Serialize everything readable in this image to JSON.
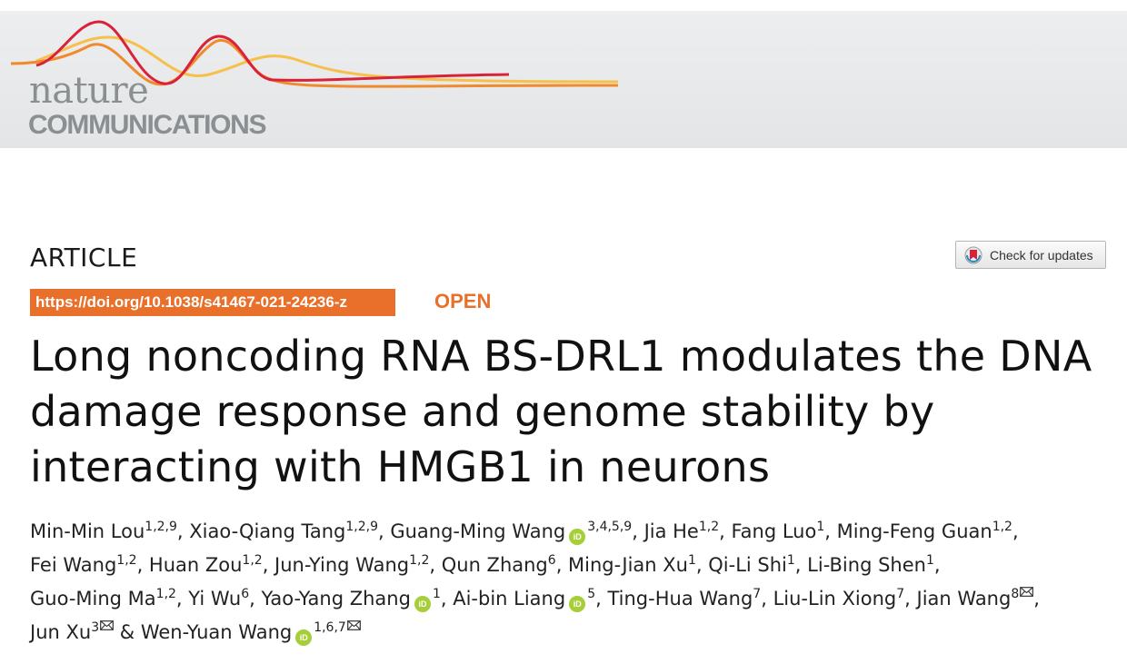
{
  "journal": {
    "logo_top": "nature",
    "logo_bottom": "COMMUNICATIONS",
    "colors": {
      "logo_gray": "#8a9092",
      "wave_red": "#d9223a",
      "wave_orange": "#f08a2c",
      "wave_yellow": "#f6c04a"
    }
  },
  "article": {
    "type_label": "ARTICLE",
    "check_updates_label": "Check for updates",
    "doi": "https://doi.org/10.1038/s41467-021-24236-z",
    "open_label": "OPEN",
    "accent_color": "#e8702a",
    "title_lines": [
      "Long noncoding RNA BS-DRL1 modulates the DNA",
      "damage response and genome stability by",
      "interacting with HMGB1 in neurons"
    ]
  },
  "authors": [
    {
      "name": "Min-Min Lou",
      "aff": "1,2,9",
      "sep": ", "
    },
    {
      "name": "Xiao-Qiang Tang",
      "aff": "1,2,9",
      "sep": ", "
    },
    {
      "name": "Guang-Ming Wang",
      "orcid": true,
      "aff": "3,4,5,9",
      "sep": ", "
    },
    {
      "name": "Jia He",
      "aff": "1,2",
      "sep": ", "
    },
    {
      "name": "Fang Luo",
      "aff": "1",
      "sep": ", "
    },
    {
      "name": "Ming-Feng Guan",
      "aff": "1,2",
      "sep": ", "
    },
    {
      "name": "Fei Wang",
      "aff": "1,2",
      "sep": ", "
    },
    {
      "name": "Huan Zou",
      "aff": "1,2",
      "sep": ", "
    },
    {
      "name": "Jun-Ying Wang",
      "aff": "1,2",
      "sep": ", "
    },
    {
      "name": "Qun Zhang",
      "aff": "6",
      "sep": ", "
    },
    {
      "name": "Ming-Jian Xu",
      "aff": "1",
      "sep": ", "
    },
    {
      "name": "Qi-Li Shi",
      "aff": "1",
      "sep": ", "
    },
    {
      "name": "Li-Bing Shen",
      "aff": "1",
      "sep": ", "
    },
    {
      "name": "Guo-Ming Ma",
      "aff": "1,2",
      "sep": ", "
    },
    {
      "name": "Yi Wu",
      "aff": "6",
      "sep": ", "
    },
    {
      "name": "Yao-Yang Zhang",
      "orcid": true,
      "aff": "1",
      "sep": ", "
    },
    {
      "name": "Ai-bin Liang",
      "orcid": true,
      "aff": "5",
      "sep": ", "
    },
    {
      "name": "Ting-Hua Wang",
      "aff": "7",
      "sep": ", "
    },
    {
      "name": "Liu-Lin Xiong",
      "aff": "7",
      "sep": ", "
    },
    {
      "name": "Jian Wang",
      "aff": "8",
      "mail": true,
      "sep": ", "
    },
    {
      "name": "Jun Xu",
      "aff": "3",
      "mail": true,
      "sep": " & "
    },
    {
      "name": "Wen-Yuan Wang",
      "orcid": true,
      "aff": "1,6,7",
      "mail": true,
      "sep": ""
    }
  ],
  "author_lines": [
    [
      0,
      5
    ],
    [
      6,
      12
    ],
    [
      13,
      19
    ],
    [
      20,
      21
    ]
  ],
  "icons": {
    "orcid": "orcid-icon",
    "mail": "envelope-icon",
    "check": "crossmark-icon"
  },
  "orcid_glyph": "iD"
}
